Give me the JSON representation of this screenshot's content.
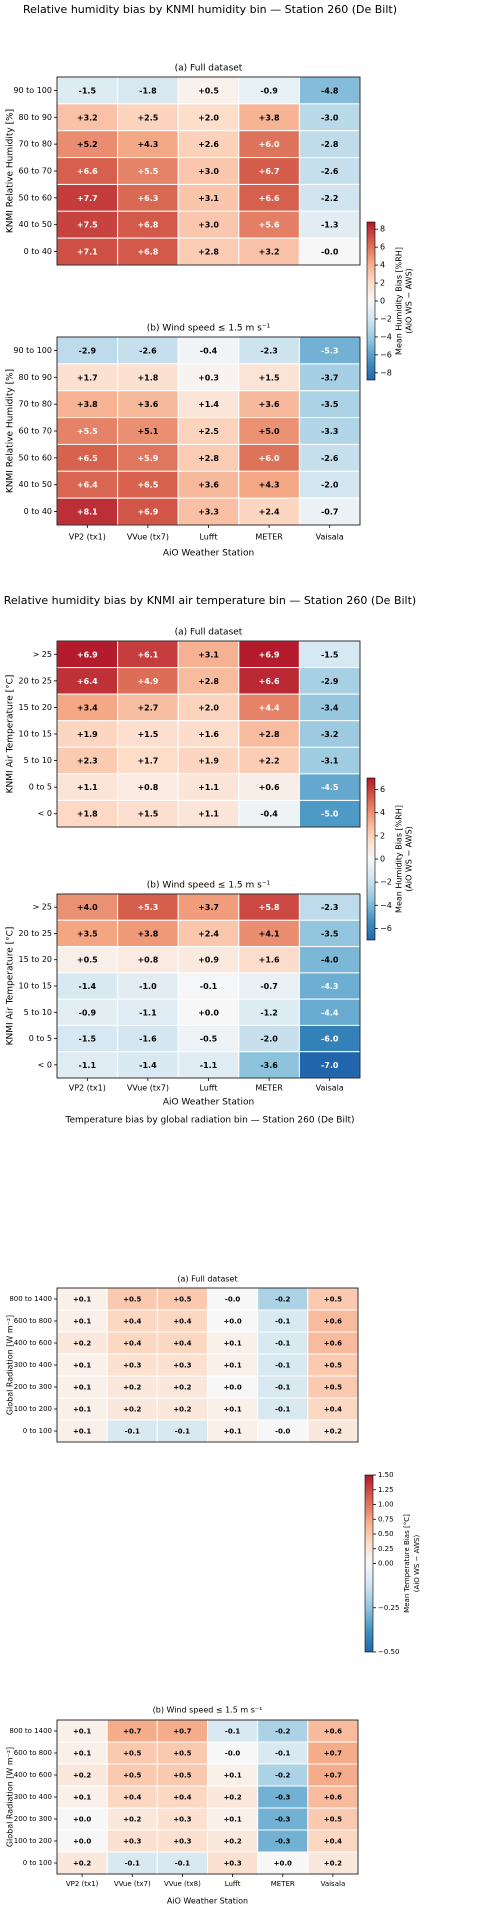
{
  "chart_data": [
    {
      "type": "heatmap",
      "title": "Relative humidity bias by KNMI humidity bin — Station 260 (De Bilt)",
      "xlabel": "AiO Weather Station",
      "ylabel": "KNMI Relative Humidity [%]",
      "categories": [
        "VP2 (tx1)",
        "VVue (tx7)",
        "Lufft",
        "METER",
        "Vaisala"
      ],
      "rows": [
        "90 to 100",
        "80 to 90",
        "70 to 80",
        "60 to 70",
        "50 to 60",
        "40 to 50",
        "0 to 40"
      ],
      "colorbar": {
        "label": [
          "Mean Humidity Bias [%RH]",
          "(AiO WS − AWS)"
        ],
        "vlim": [
          -8.8,
          8.8
        ],
        "vcenter": 0,
        "ticks": [
          8,
          6,
          4,
          2,
          0,
          {
            "value": -2,
            "label": "−2"
          },
          {
            "value": -4,
            "label": "−4"
          },
          {
            "value": -6,
            "label": "−6"
          },
          {
            "value": -8,
            "label": "−8"
          }
        ]
      },
      "panels": [
        {
          "title": "(a)  Full dataset",
          "values": [
            [
              -1.5,
              -1.8,
              0.5,
              -0.9,
              -4.8
            ],
            [
              3.2,
              2.5,
              2.0,
              3.8,
              -3.0
            ],
            [
              5.2,
              4.3,
              2.6,
              6.0,
              -2.8
            ],
            [
              6.6,
              5.5,
              3.0,
              6.7,
              -2.6
            ],
            [
              7.7,
              6.3,
              3.1,
              6.6,
              -2.2
            ],
            [
              7.5,
              6.8,
              3.0,
              5.6,
              -1.3
            ],
            [
              7.1,
              6.8,
              2.8,
              3.2,
              0
            ]
          ],
          "value_labels": [
            [
              "-1.5",
              "-1.8",
              "+0.5",
              "-0.9",
              "-4.8"
            ],
            [
              "+3.2",
              "+2.5",
              "+2.0",
              "+3.8",
              "-3.0"
            ],
            [
              "+5.2",
              "+4.3",
              "+2.6",
              "+6.0",
              "-2.8"
            ],
            [
              "+6.6",
              "+5.5",
              "+3.0",
              "+6.7",
              "-2.6"
            ],
            [
              "+7.7",
              "+6.3",
              "+3.1",
              "+6.6",
              "-2.2"
            ],
            [
              "+7.5",
              "+6.8",
              "+3.0",
              "+5.6",
              "-1.3"
            ],
            [
              "+7.1",
              "+6.8",
              "+2.8",
              "+3.2",
              "-0.0"
            ]
          ]
        },
        {
          "title": "(b)  Wind speed ≤ 1.5 m s⁻¹",
          "values": [
            [
              -2.9,
              -2.6,
              -0.4,
              -2.3,
              -5.3
            ],
            [
              1.7,
              1.8,
              0.3,
              1.5,
              -3.7
            ],
            [
              3.8,
              3.6,
              1.4,
              3.6,
              -3.5
            ],
            [
              5.5,
              5.1,
              2.5,
              5.0,
              -3.3
            ],
            [
              6.5,
              5.9,
              2.8,
              6.0,
              -2.6
            ],
            [
              6.4,
              6.5,
              3.6,
              4.3,
              -2.0
            ],
            [
              8.1,
              6.9,
              3.3,
              2.4,
              -0.7
            ]
          ],
          "value_labels": [
            [
              "-2.9",
              "-2.6",
              "-0.4",
              "-2.3",
              "-5.3"
            ],
            [
              "+1.7",
              "+1.8",
              "+0.3",
              "+1.5",
              "-3.7"
            ],
            [
              "+3.8",
              "+3.6",
              "+1.4",
              "+3.6",
              "-3.5"
            ],
            [
              "+5.5",
              "+5.1",
              "+2.5",
              "+5.0",
              "-3.3"
            ],
            [
              "+6.5",
              "+5.9",
              "+2.8",
              "+6.0",
              "-2.6"
            ],
            [
              "+6.4",
              "+6.5",
              "+3.6",
              "+4.3",
              "-2.0"
            ],
            [
              "+8.1",
              "+6.9",
              "+3.3",
              "+2.4",
              "-0.7"
            ]
          ]
        }
      ]
    },
    {
      "type": "heatmap",
      "title": "Relative humidity bias by KNMI air temperature bin — Station 260 (De Bilt)",
      "xlabel": "AiO Weather Station",
      "ylabel": "KNMI Air Temperature [°C]",
      "categories": [
        "VP2 (tx1)",
        "VVue (tx7)",
        "Lufft",
        "METER",
        "Vaisala"
      ],
      "rows": [
        "> 25",
        "20 to 25",
        "15 to 20",
        "10 to 15",
        "5 to 10",
        "0 to 5",
        "< 0"
      ],
      "colorbar": {
        "label": [
          "Mean Humidity Bias [%RH]",
          "(AiO WS − AWS)"
        ],
        "vlim": [
          -7.0,
          7.0
        ],
        "vcenter": 0,
        "ticks": [
          6,
          4,
          2,
          0,
          {
            "value": -2,
            "label": "−2"
          },
          {
            "value": -4,
            "label": "−4"
          },
          {
            "value": -6,
            "label": "−6"
          }
        ]
      },
      "panels": [
        {
          "title": "(a)  Full dataset",
          "values": [
            [
              6.9,
              6.1,
              3.1,
              6.9,
              -1.5
            ],
            [
              6.4,
              4.9,
              2.8,
              6.6,
              -2.9
            ],
            [
              3.4,
              2.7,
              2.0,
              4.4,
              -3.4
            ],
            [
              1.9,
              1.5,
              1.6,
              2.8,
              -3.2
            ],
            [
              2.3,
              1.7,
              1.9,
              2.2,
              -3.1
            ],
            [
              1.1,
              0.8,
              1.1,
              0.6,
              -4.5
            ],
            [
              1.8,
              1.5,
              1.1,
              -0.4,
              -5.0
            ]
          ],
          "value_labels": [
            [
              "+6.9",
              "+6.1",
              "+3.1",
              "+6.9",
              "-1.5"
            ],
            [
              "+6.4",
              "+4.9",
              "+2.8",
              "+6.6",
              "-2.9"
            ],
            [
              "+3.4",
              "+2.7",
              "+2.0",
              "+4.4",
              "-3.4"
            ],
            [
              "+1.9",
              "+1.5",
              "+1.6",
              "+2.8",
              "-3.2"
            ],
            [
              "+2.3",
              "+1.7",
              "+1.9",
              "+2.2",
              "-3.1"
            ],
            [
              "+1.1",
              "+0.8",
              "+1.1",
              "+0.6",
              "-4.5"
            ],
            [
              "+1.8",
              "+1.5",
              "+1.1",
              "-0.4",
              "-5.0"
            ]
          ]
        },
        {
          "title": "(b)  Wind speed ≤ 1.5 m s⁻¹",
          "values": [
            [
              4.0,
              5.3,
              3.7,
              5.8,
              -2.3
            ],
            [
              3.5,
              3.8,
              2.4,
              4.1,
              -3.5
            ],
            [
              0.5,
              0.8,
              0.9,
              1.6,
              -4.0
            ],
            [
              -1.4,
              -1.0,
              -0.1,
              -0.7,
              -4.3
            ],
            [
              -0.9,
              -1.1,
              0,
              -1.2,
              -4.4
            ],
            [
              -1.5,
              -1.6,
              -0.5,
              -2.0,
              -6.0
            ],
            [
              -1.1,
              -1.4,
              -1.1,
              -3.6,
              -7.0
            ]
          ],
          "value_labels": [
            [
              "+4.0",
              "+5.3",
              "+3.7",
              "+5.8",
              "-2.3"
            ],
            [
              "+3.5",
              "+3.8",
              "+2.4",
              "+4.1",
              "-3.5"
            ],
            [
              "+0.5",
              "+0.8",
              "+0.9",
              "+1.6",
              "-4.0"
            ],
            [
              "-1.4",
              "-1.0",
              "-0.1",
              "-0.7",
              "-4.3"
            ],
            [
              "-0.9",
              "-1.1",
              "+0.0",
              "-1.2",
              "-4.4"
            ],
            [
              "-1.5",
              "-1.6",
              "-0.5",
              "-2.0",
              "-6.0"
            ],
            [
              "-1.1",
              "-1.4",
              "-1.1",
              "-3.6",
              "-7.0"
            ]
          ]
        }
      ]
    },
    {
      "type": "heatmap",
      "title": "Temperature bias by global radiation bin — Station 260 (De Bilt)",
      "xlabel": "AiO Weather Station",
      "ylabel": "Global Radiation [W m⁻²]",
      "categories": [
        "VP2 (tx1)",
        "VVue (tx7)",
        "VVue (tx8)",
        "Lufft",
        "METER",
        "Vaisala"
      ],
      "rows": [
        "800 to 1400",
        "600 to 800",
        "400 to 600",
        "300 to 400",
        "200 to 300",
        "100 to 200",
        "0 to 100"
      ],
      "colorbar": {
        "label": [
          "Mean Temperature Bias [°C]",
          "(AiO WS − AWS)"
        ],
        "vlim": [
          -0.5,
          1.5
        ],
        "vcenter": 0,
        "ticks": [
          {
            "value": 1.5,
            "label": "1.50"
          },
          {
            "value": 1.25,
            "label": "1.25"
          },
          {
            "value": 1.0,
            "label": "1.00"
          },
          {
            "value": 0.75,
            "label": "0.75"
          },
          {
            "value": 0.5,
            "label": "0.50"
          },
          {
            "value": 0.25,
            "label": "0.25"
          },
          {
            "value": 0,
            "label": "0.00"
          },
          {
            "value": -0.25,
            "label": "−0.25"
          },
          {
            "value": -0.5,
            "label": "−0.50"
          }
        ]
      },
      "panels": [
        {
          "title": "(a)  Full dataset",
          "values": [
            [
              0.1,
              0.5,
              0.5,
              0,
              -0.2,
              0.5
            ],
            [
              0.1,
              0.4,
              0.4,
              0,
              -0.1,
              0.6
            ],
            [
              0.2,
              0.4,
              0.4,
              0.1,
              -0.1,
              0.6
            ],
            [
              0.1,
              0.3,
              0.3,
              0.1,
              -0.1,
              0.5
            ],
            [
              0.1,
              0.2,
              0.2,
              0,
              -0.1,
              0.5
            ],
            [
              0.1,
              0.2,
              0.2,
              0.1,
              -0.1,
              0.4
            ],
            [
              0.1,
              -0.1,
              -0.1,
              0.1,
              0,
              0.2
            ]
          ],
          "value_labels": [
            [
              "+0.1",
              "+0.5",
              "+0.5",
              "-0.0",
              "-0.2",
              "+0.5"
            ],
            [
              "+0.1",
              "+0.4",
              "+0.4",
              "+0.0",
              "-0.1",
              "+0.6"
            ],
            [
              "+0.2",
              "+0.4",
              "+0.4",
              "+0.1",
              "-0.1",
              "+0.6"
            ],
            [
              "+0.1",
              "+0.3",
              "+0.3",
              "+0.1",
              "-0.1",
              "+0.5"
            ],
            [
              "+0.1",
              "+0.2",
              "+0.2",
              "+0.0",
              "-0.1",
              "+0.5"
            ],
            [
              "+0.1",
              "+0.2",
              "+0.2",
              "+0.1",
              "-0.1",
              "+0.4"
            ],
            [
              "+0.1",
              "-0.1",
              "-0.1",
              "+0.1",
              "-0.0",
              "+0.2"
            ]
          ]
        },
        {
          "title": "(b)  Wind speed ≤ 1.5 m s⁻¹",
          "values": [
            [
              0.1,
              0.7,
              0.7,
              -0.1,
              -0.2,
              0.6
            ],
            [
              0.1,
              0.5,
              0.5,
              0,
              -0.1,
              0.7
            ],
            [
              0.2,
              0.5,
              0.5,
              0.1,
              -0.2,
              0.7
            ],
            [
              0.1,
              0.4,
              0.4,
              0.2,
              -0.3,
              0.6
            ],
            [
              0,
              0.2,
              0.3,
              0.1,
              -0.3,
              0.5
            ],
            [
              0,
              0.3,
              0.3,
              0.2,
              -0.3,
              0.4
            ],
            [
              0.2,
              -0.1,
              -0.1,
              0.3,
              0,
              0.2
            ]
          ],
          "value_labels": [
            [
              "+0.1",
              "+0.7",
              "+0.7",
              "-0.1",
              "-0.2",
              "+0.6"
            ],
            [
              "+0.1",
              "+0.5",
              "+0.5",
              "-0.0",
              "-0.1",
              "+0.7"
            ],
            [
              "+0.2",
              "+0.5",
              "+0.5",
              "+0.1",
              "-0.2",
              "+0.7"
            ],
            [
              "+0.1",
              "+0.4",
              "+0.4",
              "+0.2",
              "-0.3",
              "+0.6"
            ],
            [
              "+0.0",
              "+0.2",
              "+0.3",
              "+0.1",
              "-0.3",
              "+0.5"
            ],
            [
              "+0.0",
              "+0.3",
              "+0.3",
              "+0.2",
              "-0.3",
              "+0.4"
            ],
            [
              "+0.2",
              "-0.1",
              "-0.1",
              "+0.3",
              "+0.0",
              "+0.2"
            ]
          ]
        }
      ]
    }
  ]
}
